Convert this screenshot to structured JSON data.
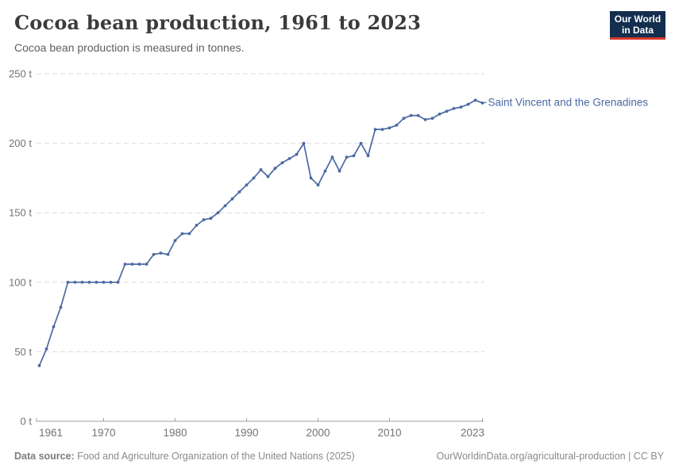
{
  "header": {
    "title": "Cocoa bean production, 1961 to 2023",
    "subtitle": "Cocoa bean production is measured in tonnes.",
    "logo": {
      "line1": "Our World",
      "line2": "in Data"
    }
  },
  "chart_data": {
    "type": "line",
    "title": "Cocoa bean production, 1961 to 2023",
    "ylabel": "",
    "xlabel": "",
    "unit": "tonnes",
    "xlim": [
      1961,
      2023
    ],
    "ylim": [
      0,
      250
    ],
    "x_ticks": [
      1961,
      1970,
      1980,
      1990,
      2000,
      2010,
      2023
    ],
    "y_ticks": [
      0,
      50,
      100,
      150,
      200,
      250
    ],
    "y_tick_suffix": " t",
    "grid": "dashed-horizontal",
    "legend_position": "end-of-line-label",
    "entity_label": "Saint Vincent and the Grenadines",
    "series": [
      {
        "name": "Saint Vincent and the Grenadines",
        "color": "#4a69a3",
        "x": [
          1961,
          1962,
          1963,
          1964,
          1965,
          1966,
          1967,
          1968,
          1969,
          1970,
          1971,
          1972,
          1973,
          1974,
          1975,
          1976,
          1977,
          1978,
          1979,
          1980,
          1981,
          1982,
          1983,
          1984,
          1985,
          1986,
          1987,
          1988,
          1989,
          1990,
          1991,
          1992,
          1993,
          1994,
          1995,
          1996,
          1997,
          1998,
          1999,
          2000,
          2001,
          2002,
          2003,
          2004,
          2005,
          2006,
          2007,
          2008,
          2009,
          2010,
          2011,
          2012,
          2013,
          2014,
          2015,
          2016,
          2017,
          2018,
          2019,
          2020,
          2021,
          2022,
          2023
        ],
        "values": [
          40,
          52,
          68,
          82,
          100,
          100,
          100,
          100,
          100,
          100,
          100,
          100,
          113,
          113,
          113,
          113,
          120,
          121,
          120,
          130,
          135,
          135,
          141,
          145,
          146,
          150,
          155,
          160,
          165,
          170,
          175,
          181,
          176,
          182,
          186,
          189,
          192,
          200,
          175,
          170,
          180,
          190,
          180,
          190,
          191,
          200,
          191,
          210,
          210,
          211,
          213,
          218,
          220,
          220,
          217,
          218,
          221,
          223,
          225,
          226,
          228,
          231,
          229
        ]
      }
    ]
  },
  "footer": {
    "source_label": "Data source:",
    "source_text": " Food and Agriculture Organization of the United Nations (2025)",
    "credit": "OurWorldinData.org/agricultural-production | CC BY"
  },
  "colors": {
    "line": "#4a69a3",
    "grid": "#dcdcdc",
    "axis": "#9e9e9e",
    "tick_label": "#737373",
    "logo_navy": "#132e4e",
    "logo_red": "#d8352b"
  }
}
